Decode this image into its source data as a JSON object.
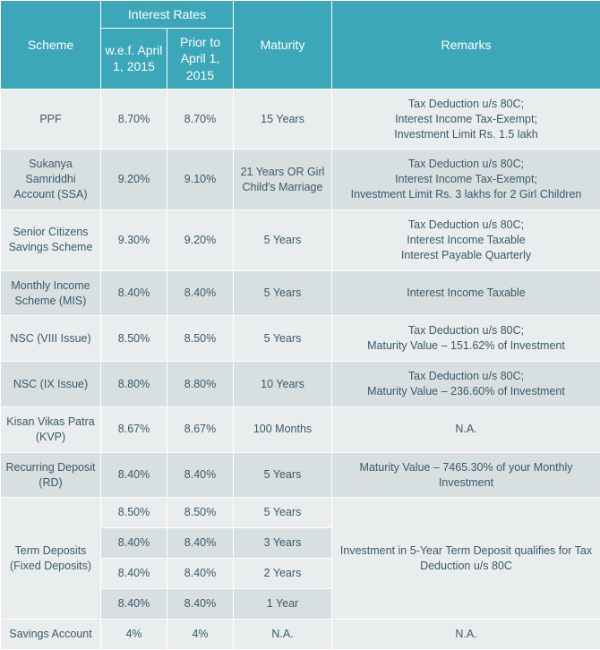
{
  "headers": {
    "scheme": "Scheme",
    "interestRates": "Interest Rates",
    "rateNew": "w.e.f. April 1, 2015",
    "rateOld": "Prior to April 1, 2015",
    "maturity": "Maturity",
    "remarks": "Remarks"
  },
  "colors": {
    "header_bg": "#3ba7b8",
    "header_text": "#ffffff",
    "row_odd_bg": "#e9edee",
    "row_even_bg": "#d7dfe1",
    "text": "#3a5a6a",
    "border": "#ffffff"
  },
  "rows": [
    {
      "scheme": "PPF",
      "rateNew": "8.70%",
      "rateOld": "8.70%",
      "maturity": "15 Years",
      "remarks": "Tax Deduction u/s 80C;\nInterest Income Tax-Exempt;\nInvestment Limit Rs. 1.5 lakh"
    },
    {
      "scheme": "Sukanya Samriddhi Account (SSA)",
      "rateNew": "9.20%",
      "rateOld": "9.10%",
      "maturity": "21 Years OR Girl Child's Marriage",
      "remarks": "Tax Deduction u/s 80C;\nInterest Income Tax-Exempt;\nInvestment Limit Rs. 3 lakhs for 2 Girl Children"
    },
    {
      "scheme": "Senior Citizens Savings Scheme",
      "rateNew": "9.30%",
      "rateOld": "9.20%",
      "maturity": "5 Years",
      "remarks": "Tax Deduction u/s 80C;\nInterest Income Taxable\nInterest Payable Quarterly"
    },
    {
      "scheme": "Monthly Income Scheme (MIS)",
      "rateNew": "8.40%",
      "rateOld": "8.40%",
      "maturity": "5 Years",
      "remarks": "Interest Income Taxable"
    },
    {
      "scheme": "NSC (VIII Issue)",
      "rateNew": "8.50%",
      "rateOld": "8.50%",
      "maturity": "5 Years",
      "remarks": "Tax Deduction u/s 80C;\nMaturity Value – 151.62% of Investment"
    },
    {
      "scheme": "NSC (IX Issue)",
      "rateNew": "8.80%",
      "rateOld": "8.80%",
      "maturity": "10 Years",
      "remarks": "Tax Deduction u/s 80C;\nMaturity Value – 236.60% of Investment"
    },
    {
      "scheme": "Kisan Vikas Patra (KVP)",
      "rateNew": "8.67%",
      "rateOld": "8.67%",
      "maturity": "100 Months",
      "remarks": "N.A."
    },
    {
      "scheme": "Recurring Deposit (RD)",
      "rateNew": "8.40%",
      "rateOld": "8.40%",
      "maturity": "5 Years",
      "remarks": "Maturity Value – 7465.30% of your Monthly Investment"
    }
  ],
  "term": {
    "scheme": "Term Deposits (Fixed Deposits)",
    "remarks": "Investment in 5-Year Term Deposit qualifies for Tax Deduction u/s 80C",
    "tiers": [
      {
        "rateNew": "8.50%",
        "rateOld": "8.50%",
        "maturity": "5 Years"
      },
      {
        "rateNew": "8.40%",
        "rateOld": "8.40%",
        "maturity": "3 Years"
      },
      {
        "rateNew": "8.40%",
        "rateOld": "8.40%",
        "maturity": "2 Years"
      },
      {
        "rateNew": "8.40%",
        "rateOld": "8.40%",
        "maturity": "1 Year"
      }
    ]
  },
  "savings": {
    "scheme": "Savings Account",
    "rateNew": "4%",
    "rateOld": "4%",
    "maturity": "N.A.",
    "remarks": "N.A."
  }
}
